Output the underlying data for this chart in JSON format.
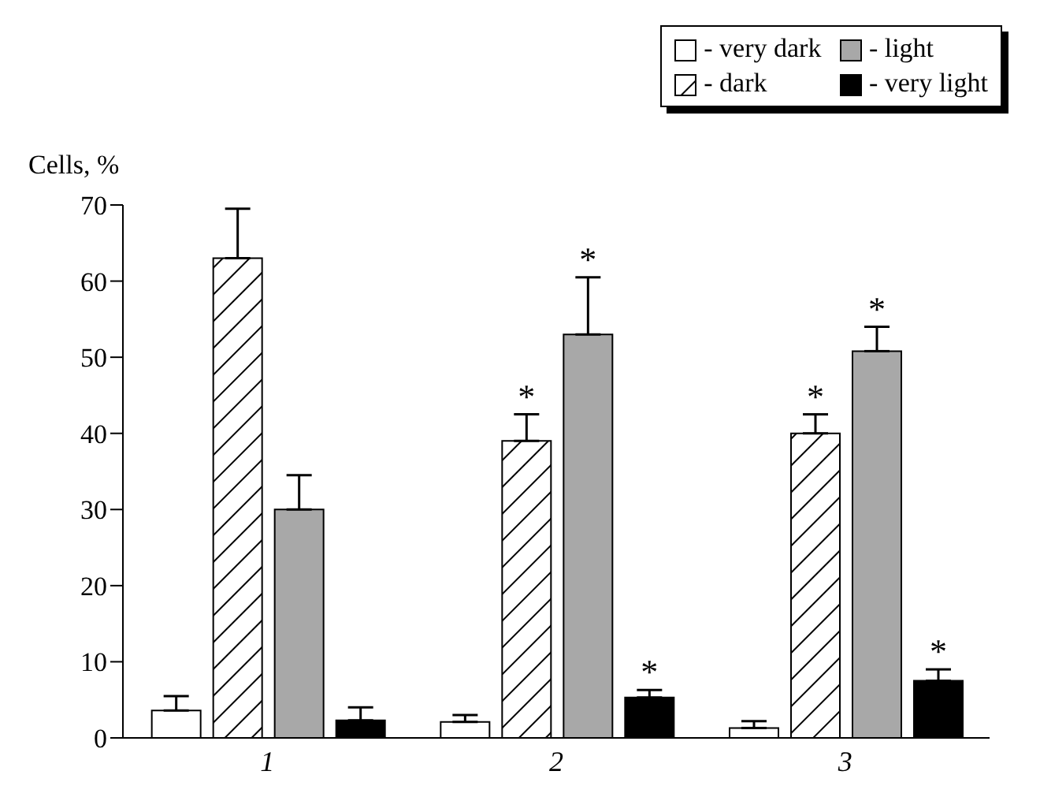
{
  "chart_data": {
    "type": "bar",
    "ylabel": "Cells, %",
    "categories": [
      "1",
      "2",
      "3"
    ],
    "series": [
      {
        "name": "- very dark",
        "color": "#ffffff",
        "values": [
          3.6,
          2.1,
          1.3
        ],
        "errors": [
          [
            3.6,
            5.5
          ],
          [
            2.1,
            3
          ],
          [
            1.3,
            2.2
          ]
        ]
      },
      {
        "name": "- dark",
        "color": "#000000",
        "values": [
          63,
          39,
          40
        ],
        "errors": [
          [
            63,
            69.5
          ],
          [
            39,
            42.5
          ],
          [
            40,
            42.5
          ]
        ]
      },
      {
        "name": "- light",
        "color": "#a8a8a8",
        "values": [
          30,
          53,
          50.8
        ],
        "errors": [
          [
            30,
            34.5
          ],
          [
            53,
            60.5
          ],
          [
            50.8,
            54
          ]
        ]
      },
      {
        "name": "- very light",
        "color": "#000000",
        "values": [
          2.3,
          5.3,
          7.5
        ],
        "errors": [
          [
            2.3,
            4
          ],
          [
            5.3,
            6.3
          ],
          [
            7.5,
            9
          ]
        ]
      }
    ],
    "ylim": [
      0,
      70
    ],
    "yticks": [
      0,
      10,
      20,
      30,
      40,
      50,
      60,
      70
    ],
    "grid": false,
    "legend": "top right",
    "annotations": [
      {
        "text": "*",
        "x": "2",
        "y": 39
      },
      {
        "text": "*",
        "x": "2",
        "y": 53
      },
      {
        "text": "*",
        "x": "2",
        "y": 5.3
      },
      {
        "text": "*",
        "x": "3",
        "y": 40
      },
      {
        "text": "*",
        "x": "3",
        "y": 50.8
      },
      {
        "text": "*",
        "x": "3",
        "y": 7.5
      }
    ]
  }
}
